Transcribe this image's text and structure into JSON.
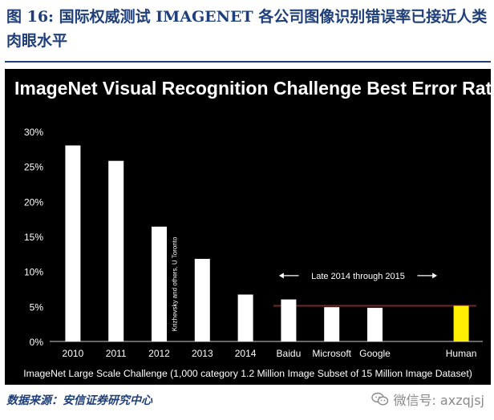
{
  "caption": "图 16: 国际权威测试 IMAGENET 各公司图像识别错误率已接近人类肉眼水平",
  "source": "数据来源：安信证券研究中心",
  "watermark": "微信号: axzqjsj",
  "chart_data": {
    "type": "bar",
    "title": "ImageNet Visual Recognition Challenge Best Error Rates",
    "xlabel": "ImageNet Large Scale Challenge (1,000 category 1.2 Million Image Subset of 15 Million Image Dataset)",
    "ylabel": "",
    "categories": [
      "2010",
      "2011",
      "2012",
      "2013",
      "2014",
      "Baidu",
      "Microsoft",
      "Google",
      "",
      "Human"
    ],
    "values": [
      28.0,
      25.8,
      16.4,
      11.8,
      6.7,
      6.0,
      4.9,
      4.8,
      null,
      5.1
    ],
    "bar_colors": [
      "#ffffff",
      "#ffffff",
      "#ffffff",
      "#ffffff",
      "#ffffff",
      "#ffffff",
      "#ffffff",
      "#ffffff",
      "#ffffff",
      "#ffee00"
    ],
    "ylim": [
      0,
      30
    ],
    "yticks": [
      0,
      5,
      10,
      15,
      20,
      25,
      30
    ],
    "ytick_labels": [
      "0%",
      "5%",
      "10%",
      "15%",
      "20%",
      "25%",
      "30%"
    ],
    "grid": false,
    "background": "#000000",
    "reference_line": {
      "value": 5.1,
      "color": "#7a2323"
    },
    "annotations": [
      {
        "text": "Krizhevsky and others, U Toronto",
        "category_index": 2,
        "orientation": "vertical"
      },
      {
        "text": "Late 2014 through 2015",
        "type": "span-arrow",
        "from_index": 5,
        "to_index": 9
      }
    ]
  }
}
